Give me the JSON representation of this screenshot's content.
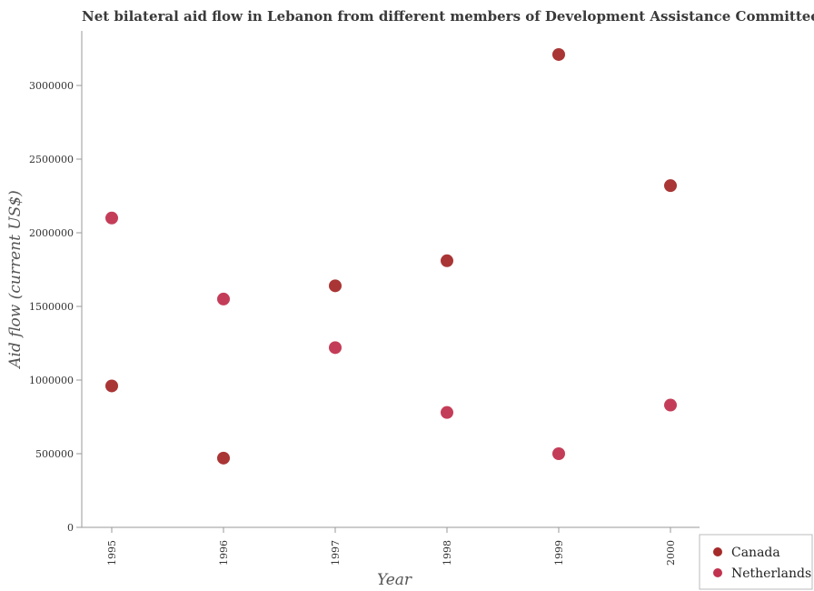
{
  "chart_data": {
    "type": "scatter",
    "title": "Net bilateral aid flow in Lebanon from different members of Development Assistance Committee",
    "xlabel": "Year",
    "ylabel": "Aid flow (current US$)",
    "x": [
      "1995",
      "1996",
      "1997",
      "1998",
      "1999",
      "2000"
    ],
    "ylim": [
      0,
      3000000
    ],
    "yticks": [
      0,
      500000,
      1000000,
      1500000,
      2000000,
      2500000,
      3000000
    ],
    "grid": false,
    "legend_position": "bottom-right",
    "series": [
      {
        "name": "Canada",
        "color": "#a52a2a",
        "values": [
          960000,
          470000,
          1640000,
          1810000,
          3210000,
          2320000
        ]
      },
      {
        "name": "Netherlands",
        "color": "#c1334f",
        "values": [
          2100000,
          1550000,
          1220000,
          780000,
          500000,
          830000
        ]
      }
    ]
  }
}
